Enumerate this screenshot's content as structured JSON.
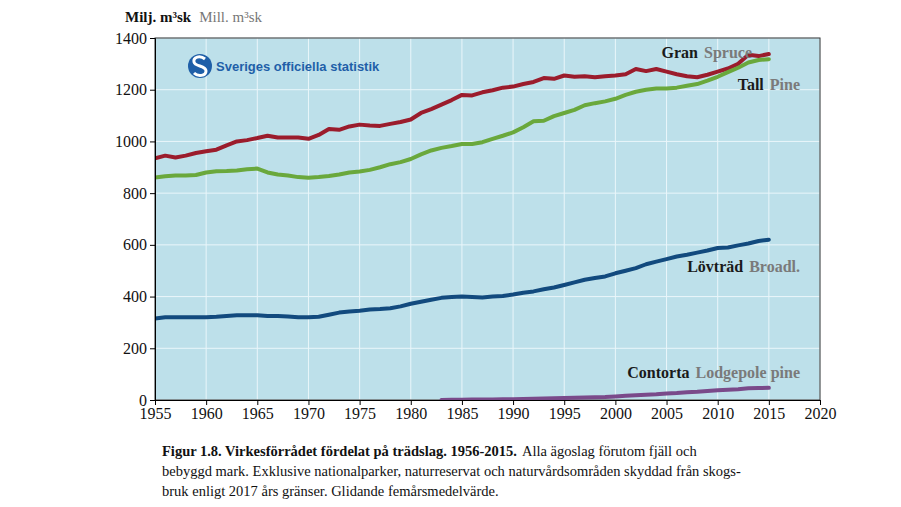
{
  "chart_data": {
    "type": "line",
    "title": "Figur 1.8. Virkesförrådet fördelat på trädslag. 1956-2015.",
    "caption_lines": [
      "Alla ägoslag förutom fjäll och",
      "bebyggd mark. Exklusive nationalparker, naturreservat och naturvårdsområden skyddad från skogs-",
      "bruk enligt 2017 års gränser. Glidande femårsmedelvärde."
    ],
    "ylabel": "Milj. m³sk",
    "ylabel_en": "Mill. m³sk",
    "source": "Sveriges officiella statistik",
    "x": [
      1955,
      1956,
      1957,
      1958,
      1959,
      1960,
      1961,
      1962,
      1963,
      1964,
      1965,
      1966,
      1967,
      1968,
      1969,
      1970,
      1971,
      1972,
      1973,
      1974,
      1975,
      1976,
      1977,
      1978,
      1979,
      1980,
      1981,
      1982,
      1983,
      1984,
      1985,
      1986,
      1987,
      1988,
      1989,
      1990,
      1991,
      1992,
      1993,
      1994,
      1995,
      1996,
      1997,
      1998,
      1999,
      2000,
      2001,
      2002,
      2003,
      2004,
      2005,
      2006,
      2007,
      2008,
      2009,
      2010,
      2011,
      2012,
      2013,
      2014,
      2015
    ],
    "xlim": [
      1955,
      2020
    ],
    "xticks": [
      1955,
      1960,
      1965,
      1970,
      1975,
      1980,
      1985,
      1990,
      1995,
      2000,
      2005,
      2010,
      2015,
      2020
    ],
    "ylim": [
      0,
      1400
    ],
    "yticks": [
      0,
      200,
      400,
      600,
      800,
      1000,
      1200,
      1400
    ],
    "grid": true,
    "series": [
      {
        "name": "Gran",
        "name_en": "Spruce",
        "color": "#9b1c2c",
        "values": [
          935,
          945,
          938,
          945,
          955,
          962,
          968,
          985,
          1000,
          1005,
          1013,
          1022,
          1015,
          1015,
          1015,
          1010,
          1025,
          1048,
          1045,
          1058,
          1065,
          1062,
          1060,
          1068,
          1075,
          1085,
          1110,
          1125,
          1142,
          1160,
          1180,
          1178,
          1190,
          1198,
          1208,
          1212,
          1222,
          1230,
          1245,
          1242,
          1255,
          1250,
          1252,
          1248,
          1252,
          1255,
          1260,
          1280,
          1272,
          1280,
          1270,
          1260,
          1252,
          1248,
          1258,
          1270,
          1282,
          1300,
          1335,
          1330,
          1338
        ]
      },
      {
        "name": "Tall",
        "name_en": "Pine",
        "color": "#6aa83c",
        "values": [
          860,
          865,
          868,
          868,
          870,
          880,
          885,
          886,
          888,
          892,
          895,
          880,
          872,
          868,
          862,
          860,
          862,
          866,
          872,
          880,
          884,
          890,
          900,
          912,
          920,
          932,
          950,
          965,
          975,
          982,
          990,
          990,
          997,
          1010,
          1022,
          1035,
          1055,
          1078,
          1080,
          1098,
          1110,
          1122,
          1140,
          1148,
          1155,
          1165,
          1180,
          1192,
          1200,
          1205,
          1205,
          1208,
          1215,
          1222,
          1235,
          1250,
          1268,
          1285,
          1305,
          1315,
          1318
        ]
      },
      {
        "name": "Lövträd",
        "name_en": "Broadl.",
        "color": "#124a7e",
        "values": [
          315,
          320,
          320,
          320,
          320,
          320,
          322,
          325,
          328,
          328,
          328,
          325,
          325,
          323,
          320,
          320,
          322,
          330,
          338,
          342,
          345,
          350,
          352,
          355,
          362,
          372,
          380,
          388,
          395,
          398,
          400,
          398,
          396,
          400,
          402,
          408,
          415,
          420,
          428,
          435,
          445,
          455,
          465,
          472,
          478,
          490,
          500,
          510,
          525,
          535,
          545,
          555,
          562,
          570,
          578,
          588,
          590,
          598,
          605,
          615,
          620
        ]
      },
      {
        "name": "Contorta",
        "name_en": "Lodgepole pine",
        "color": "#7a4a8a",
        "values": [
          null,
          null,
          null,
          null,
          null,
          null,
          null,
          null,
          null,
          null,
          null,
          null,
          null,
          null,
          null,
          null,
          null,
          null,
          null,
          null,
          null,
          null,
          null,
          null,
          null,
          null,
          null,
          null,
          0,
          1,
          1,
          2,
          2,
          2,
          3,
          3,
          4,
          5,
          6,
          7,
          8,
          9,
          10,
          11,
          12,
          14,
          16,
          18,
          20,
          22,
          25,
          27,
          30,
          32,
          35,
          38,
          40,
          42,
          45,
          46,
          47
        ]
      }
    ]
  }
}
